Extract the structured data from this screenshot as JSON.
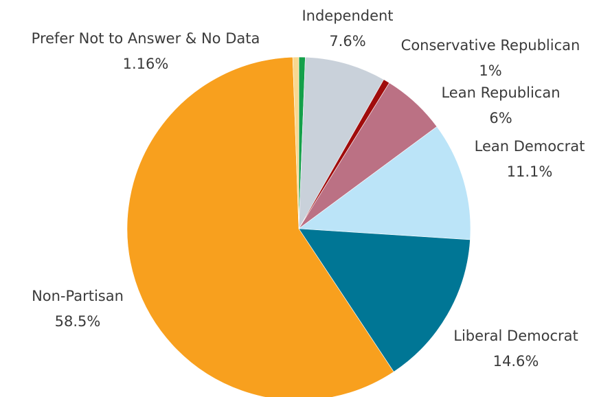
{
  "chart_data": {
    "type": "pie",
    "title": "",
    "start_angle_deg": 0,
    "direction": "clockwise",
    "slices": [
      {
        "name": "Prefer Not to Answer",
        "label": "",
        "pct_label": "",
        "value": 0.6,
        "color": "#14a04a"
      },
      {
        "name": "Independent",
        "label": "Independent",
        "pct_label": "7.6%",
        "value": 7.6,
        "color": "#c9d1da"
      },
      {
        "name": "Conservative Republican",
        "label": "Conservative Republican",
        "pct_label": "1%",
        "value": 0.6,
        "color": "#a00c0c"
      },
      {
        "name": "Lean Republican",
        "label": "Lean Republican",
        "pct_label": "6%",
        "value": 6.0,
        "color": "#bb7184"
      },
      {
        "name": "Lean Democrat",
        "label": "Lean Democrat",
        "pct_label": "11.1%",
        "value": 11.1,
        "color": "#bbe4f8"
      },
      {
        "name": "Liberal Democrat",
        "label": "Liberal Democrat",
        "pct_label": "14.6%",
        "value": 14.6,
        "color": "#007695"
      },
      {
        "name": "Non-Partisan",
        "label": "Non-Partisan",
        "pct_label": "58.5%",
        "value": 58.5,
        "color": "#f8a01e"
      },
      {
        "name": "No Data",
        "label": "Prefer Not to Answer & No Data",
        "pct_label": "1.16%",
        "value": 0.56,
        "color": "#f8d890"
      }
    ]
  }
}
